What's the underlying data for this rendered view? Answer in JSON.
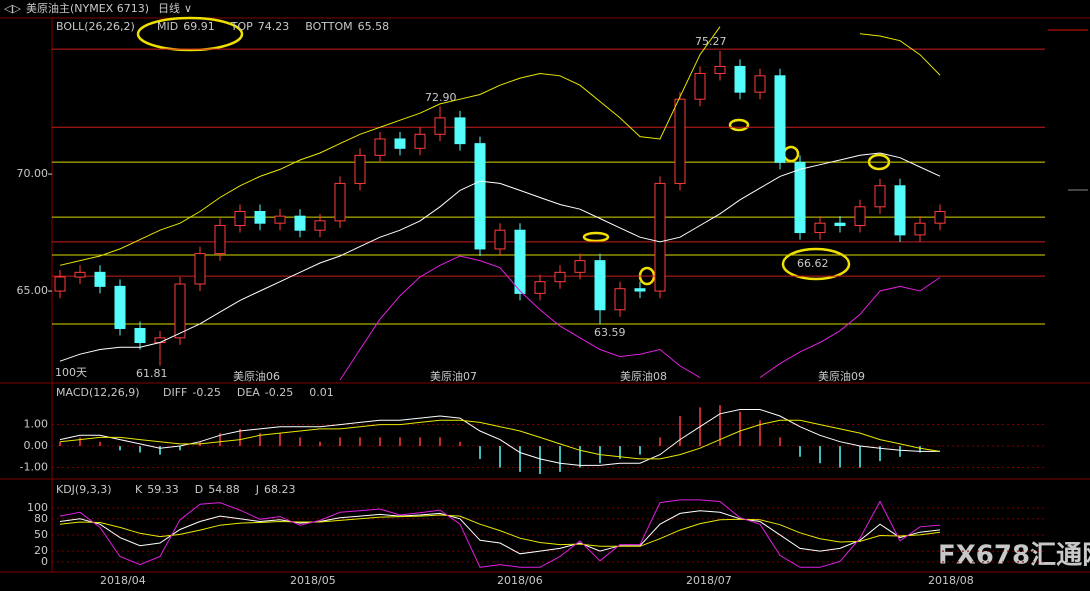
{
  "header": {
    "symbol": "美原油主(NYMEX 6713)",
    "period": "日线",
    "watermark": "FX678汇通网"
  },
  "chart_data": [
    {
      "type": "candlestick",
      "title": "BOLL(26,26,2)",
      "open": [
        65.0,
        65.6,
        65.8,
        65.2,
        63.4,
        62.8,
        63.0,
        65.3,
        66.6,
        67.8,
        68.4,
        67.9,
        68.2,
        67.6,
        68.0,
        69.6,
        70.8,
        71.5,
        71.1,
        71.7,
        72.4,
        71.3,
        66.8,
        67.6,
        64.9,
        65.4,
        65.8,
        66.3,
        64.2,
        65.1,
        65.0,
        69.6,
        73.2,
        74.3,
        74.6,
        73.5,
        74.2,
        70.5,
        67.5,
        67.9,
        67.8,
        68.6,
        69.5,
        67.4,
        67.9
      ],
      "high": [
        65.9,
        66.1,
        66.1,
        65.5,
        63.7,
        63.3,
        65.6,
        66.9,
        68.1,
        68.7,
        68.7,
        68.5,
        68.5,
        68.3,
        69.9,
        71.1,
        71.8,
        71.8,
        72.0,
        72.9,
        72.7,
        71.6,
        67.9,
        67.9,
        65.7,
        66.1,
        66.6,
        66.6,
        65.4,
        65.4,
        69.9,
        73.5,
        74.6,
        75.27,
        74.9,
        74.5,
        74.5,
        70.8,
        68.2,
        68.2,
        68.9,
        69.8,
        69.8,
        68.2,
        68.7
      ],
      "low": [
        64.7,
        65.3,
        64.9,
        63.1,
        62.5,
        61.81,
        62.7,
        65.0,
        66.3,
        67.5,
        67.6,
        67.6,
        67.3,
        67.3,
        67.7,
        69.3,
        70.5,
        70.8,
        70.8,
        71.4,
        71.0,
        66.5,
        66.5,
        64.6,
        64.6,
        65.1,
        65.5,
        63.59,
        63.9,
        64.7,
        64.7,
        69.3,
        72.9,
        74.0,
        73.2,
        73.2,
        70.2,
        67.2,
        67.2,
        67.5,
        67.5,
        68.3,
        67.1,
        67.1,
        67.6
      ],
      "close": [
        65.6,
        65.8,
        65.2,
        63.4,
        62.8,
        63.0,
        65.3,
        66.6,
        67.8,
        68.4,
        67.9,
        68.2,
        67.6,
        68.0,
        69.6,
        70.8,
        71.5,
        71.1,
        71.7,
        72.4,
        71.3,
        66.8,
        67.6,
        64.9,
        65.4,
        65.8,
        66.3,
        64.2,
        65.1,
        65.0,
        69.6,
        73.2,
        74.3,
        74.6,
        73.5,
        74.2,
        70.5,
        67.5,
        67.9,
        67.8,
        68.6,
        69.5,
        67.4,
        67.9,
        68.4
      ],
      "up_color": "#ff3c3c",
      "down_color": "#54fcfc",
      "series": [
        {
          "name": "MID",
          "color": "#ffffff",
          "values": [
            62.0,
            62.3,
            62.5,
            62.6,
            62.6,
            62.8,
            63.2,
            63.6,
            64.1,
            64.6,
            65.0,
            65.4,
            65.8,
            66.2,
            66.5,
            66.9,
            67.3,
            67.6,
            68.0,
            68.6,
            69.3,
            69.7,
            69.6,
            69.3,
            69.0,
            68.7,
            68.5,
            68.1,
            67.7,
            67.3,
            67.1,
            67.3,
            67.8,
            68.3,
            68.9,
            69.4,
            69.9,
            70.2,
            70.4,
            70.6,
            70.8,
            70.9,
            70.7,
            70.3,
            69.91
          ]
        },
        {
          "name": "TOP",
          "color": "#e8e800",
          "values": [
            66.1,
            66.3,
            66.5,
            66.8,
            67.2,
            67.6,
            67.9,
            68.4,
            69.0,
            69.5,
            69.9,
            70.2,
            70.6,
            70.9,
            71.3,
            71.7,
            72.0,
            72.3,
            72.6,
            73.0,
            73.2,
            73.4,
            73.8,
            74.1,
            74.3,
            74.2,
            73.8,
            73.1,
            72.4,
            71.6,
            71.5,
            73.3,
            75.1,
            76.3,
            null,
            null,
            null,
            null,
            null,
            null,
            76.0,
            75.9,
            75.7,
            75.1,
            74.23
          ]
        },
        {
          "name": "BOTTOM",
          "color": "#e020e0",
          "values": [
            null,
            null,
            null,
            null,
            null,
            null,
            null,
            null,
            null,
            null,
            null,
            null,
            null,
            null,
            61.2,
            62.5,
            63.8,
            64.8,
            65.6,
            66.1,
            66.5,
            66.3,
            66.0,
            65.0,
            64.2,
            63.5,
            63.0,
            62.5,
            62.2,
            62.3,
            62.5,
            61.8,
            61.3,
            null,
            null,
            61.3,
            61.9,
            62.4,
            62.8,
            63.3,
            64.0,
            65.0,
            65.2,
            65.0,
            65.58
          ]
        }
      ],
      "levels": [
        {
          "value": 75.34,
          "color": "#c81e1e"
        },
        {
          "value": 72.0,
          "color": "#c81e1e"
        },
        {
          "value": 67.1,
          "color": "#c81e1e"
        },
        {
          "value": 65.64,
          "color": "#c81e1e"
        },
        {
          "value": 70.51,
          "color": "#d8d800"
        },
        {
          "value": 68.16,
          "color": "#d8d800"
        },
        {
          "value": 66.54,
          "color": "#d8d800"
        },
        {
          "value": 63.59,
          "color": "#d8d800"
        }
      ],
      "ylim": [
        61.07,
        76.67
      ],
      "yticks": [
        {
          "value": 65,
          "label": "65.00"
        },
        {
          "value": 70,
          "label": "70.00"
        }
      ],
      "annotations": [
        "72.90",
        "75.27",
        "61.81",
        "63.59",
        "66.62",
        "100天"
      ],
      "period_labels": [
        "美原油06",
        "美原油07",
        "美原油08",
        "美原油09"
      ]
    },
    {
      "type": "macd",
      "title": "MACD(12,26,9)",
      "series": [
        {
          "name": "DIFF",
          "color": "#ffffff",
          "values": [
            0.3,
            0.5,
            0.5,
            0.3,
            0.1,
            -0.1,
            0.0,
            0.2,
            0.5,
            0.7,
            0.8,
            0.9,
            0.9,
            0.9,
            1.0,
            1.1,
            1.2,
            1.2,
            1.3,
            1.4,
            1.3,
            0.7,
            0.3,
            -0.3,
            -0.6,
            -0.8,
            -0.9,
            -0.9,
            -0.8,
            -0.8,
            -0.4,
            0.3,
            0.9,
            1.5,
            1.7,
            1.7,
            1.4,
            0.9,
            0.5,
            0.2,
            0.0,
            -0.1,
            -0.2,
            -0.25,
            -0.25
          ]
        },
        {
          "name": "DEA",
          "color": "#e8e800",
          "values": [
            0.2,
            0.3,
            0.4,
            0.4,
            0.3,
            0.2,
            0.1,
            0.1,
            0.2,
            0.3,
            0.5,
            0.6,
            0.7,
            0.8,
            0.8,
            0.9,
            1.0,
            1.0,
            1.1,
            1.2,
            1.2,
            1.1,
            0.9,
            0.7,
            0.4,
            0.1,
            -0.2,
            -0.4,
            -0.5,
            -0.6,
            -0.6,
            -0.4,
            -0.1,
            0.3,
            0.7,
            1.0,
            1.2,
            1.2,
            1.0,
            0.8,
            0.6,
            0.3,
            0.1,
            -0.1,
            -0.25
          ]
        }
      ],
      "histogram": {
        "values": [
          0.2,
          0.4,
          0.2,
          -0.2,
          -0.3,
          -0.4,
          -0.2,
          0.2,
          0.6,
          0.8,
          0.6,
          0.6,
          0.4,
          0.2,
          0.4,
          0.4,
          0.4,
          0.4,
          0.4,
          0.4,
          0.2,
          -0.6,
          -1.0,
          -1.2,
          -1.3,
          -1.2,
          -1.0,
          -0.8,
          -0.6,
          -0.4,
          0.4,
          1.4,
          1.8,
          1.9,
          1.6,
          1.2,
          0.4,
          -0.5,
          -0.8,
          -1.0,
          -1.0,
          -0.7,
          -0.5,
          -0.3,
          0.01
        ],
        "up_color": "#ff3c3c",
        "down_color": "#54fcfc",
        "color": "#ffffff"
      },
      "ylim": [
        -1.44,
        2.84
      ],
      "yticks": [
        {
          "value": 1,
          "label": "1.00"
        },
        {
          "value": 0,
          "label": "0.00"
        },
        {
          "value": -1,
          "label": "-1.00"
        }
      ],
      "grid": true
    },
    {
      "type": "kdj",
      "title": "KDJ(9,3,3)",
      "series": [
        {
          "name": "K",
          "color": "#ffffff",
          "values": [
            75,
            80,
            70,
            45,
            30,
            35,
            60,
            75,
            85,
            80,
            75,
            78,
            72,
            75,
            82,
            85,
            88,
            85,
            87,
            90,
            80,
            40,
            35,
            15,
            20,
            25,
            35,
            20,
            30,
            30,
            70,
            90,
            95,
            92,
            80,
            75,
            50,
            25,
            20,
            25,
            40,
            70,
            45,
            55,
            59.33
          ]
        },
        {
          "name": "D",
          "color": "#e8e800",
          "values": [
            70,
            74,
            73,
            64,
            53,
            47,
            51,
            59,
            68,
            72,
            73,
            75,
            74,
            74,
            77,
            80,
            83,
            84,
            85,
            87,
            85,
            70,
            58,
            44,
            36,
            32,
            33,
            29,
            29,
            29,
            43,
            59,
            71,
            78,
            79,
            78,
            69,
            54,
            43,
            37,
            38,
            49,
            48,
            50,
            54.88
          ]
        },
        {
          "name": "J",
          "color": "#e020e0",
          "values": [
            85,
            92,
            64,
            10,
            -5,
            10,
            78,
            107,
            110,
            96,
            79,
            84,
            68,
            77,
            92,
            95,
            98,
            87,
            91,
            96,
            70,
            -10,
            -5,
            -10,
            -10,
            10,
            39,
            2,
            32,
            32,
            110,
            115,
            115,
            112,
            82,
            70,
            12,
            -10,
            -10,
            1,
            44,
            112,
            39,
            65,
            68.23
          ]
        }
      ],
      "ylim": [
        -15,
        150
      ],
      "yticks": [
        100,
        80,
        50,
        20,
        0
      ],
      "grid": true,
      "x_labels": [
        "2018/04",
        "2018/05",
        "2018/06",
        "2018/07",
        "2018/08"
      ]
    }
  ]
}
